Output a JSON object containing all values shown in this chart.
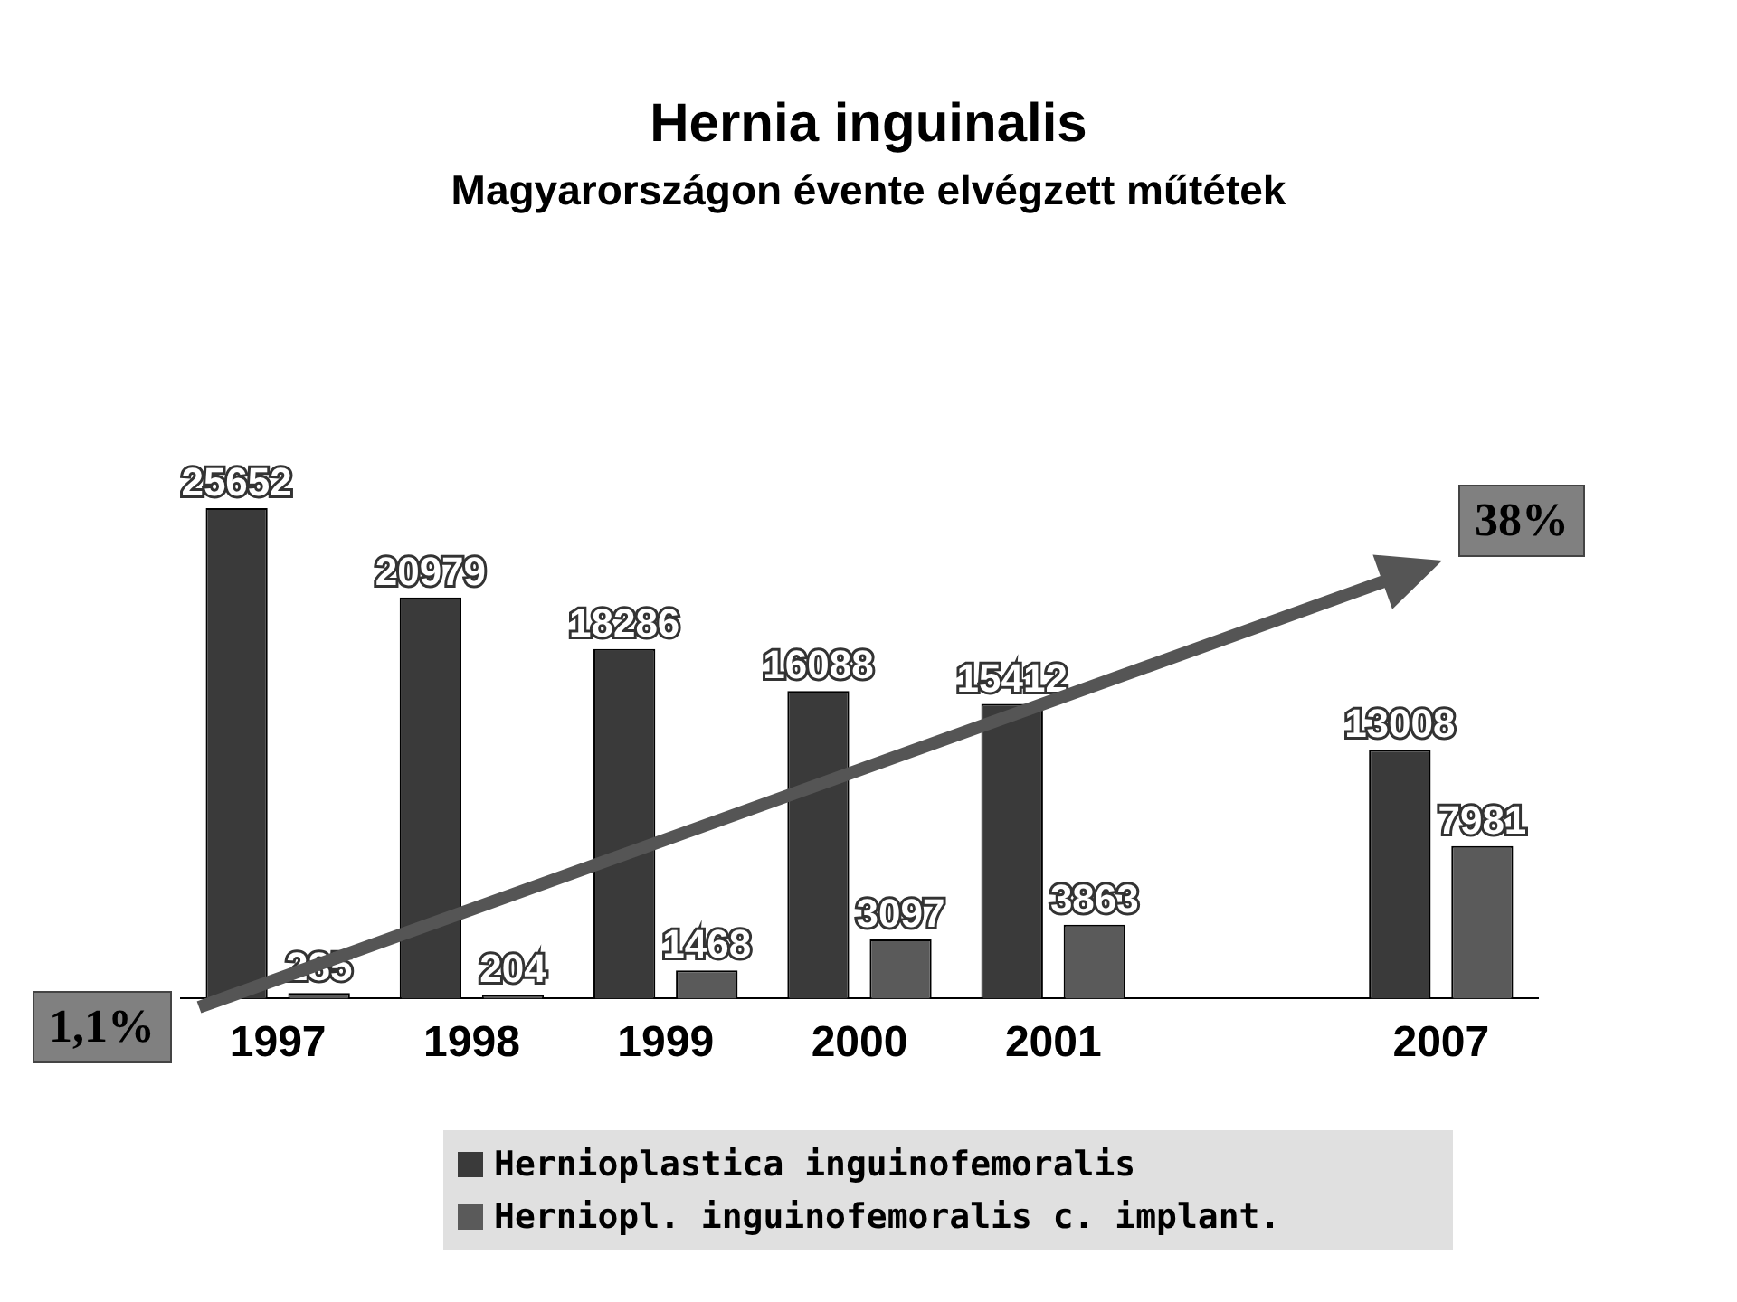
{
  "chart_data": {
    "type": "bar",
    "title": "Hernia inguinalis",
    "subtitle": "Magyarországon évente elvégzett műtétek",
    "categories": [
      "1997",
      "1998",
      "1999",
      "2000",
      "2001",
      null,
      "2007"
    ],
    "series": [
      {
        "name": "Hernioplastica inguinofemoralis",
        "color": "#3a3a3a",
        "values": [
          25652,
          20979,
          18286,
          16088,
          15412,
          null,
          13008
        ]
      },
      {
        "name": "Herniopl. inguinofemoralis c. implant.",
        "color": "#5a5a5a",
        "values": [
          285,
          204,
          1468,
          3097,
          3863,
          null,
          7981
        ]
      }
    ],
    "data_labels": true,
    "legend": "bottom",
    "annotations": [
      "1,1%",
      "38%"
    ]
  }
}
